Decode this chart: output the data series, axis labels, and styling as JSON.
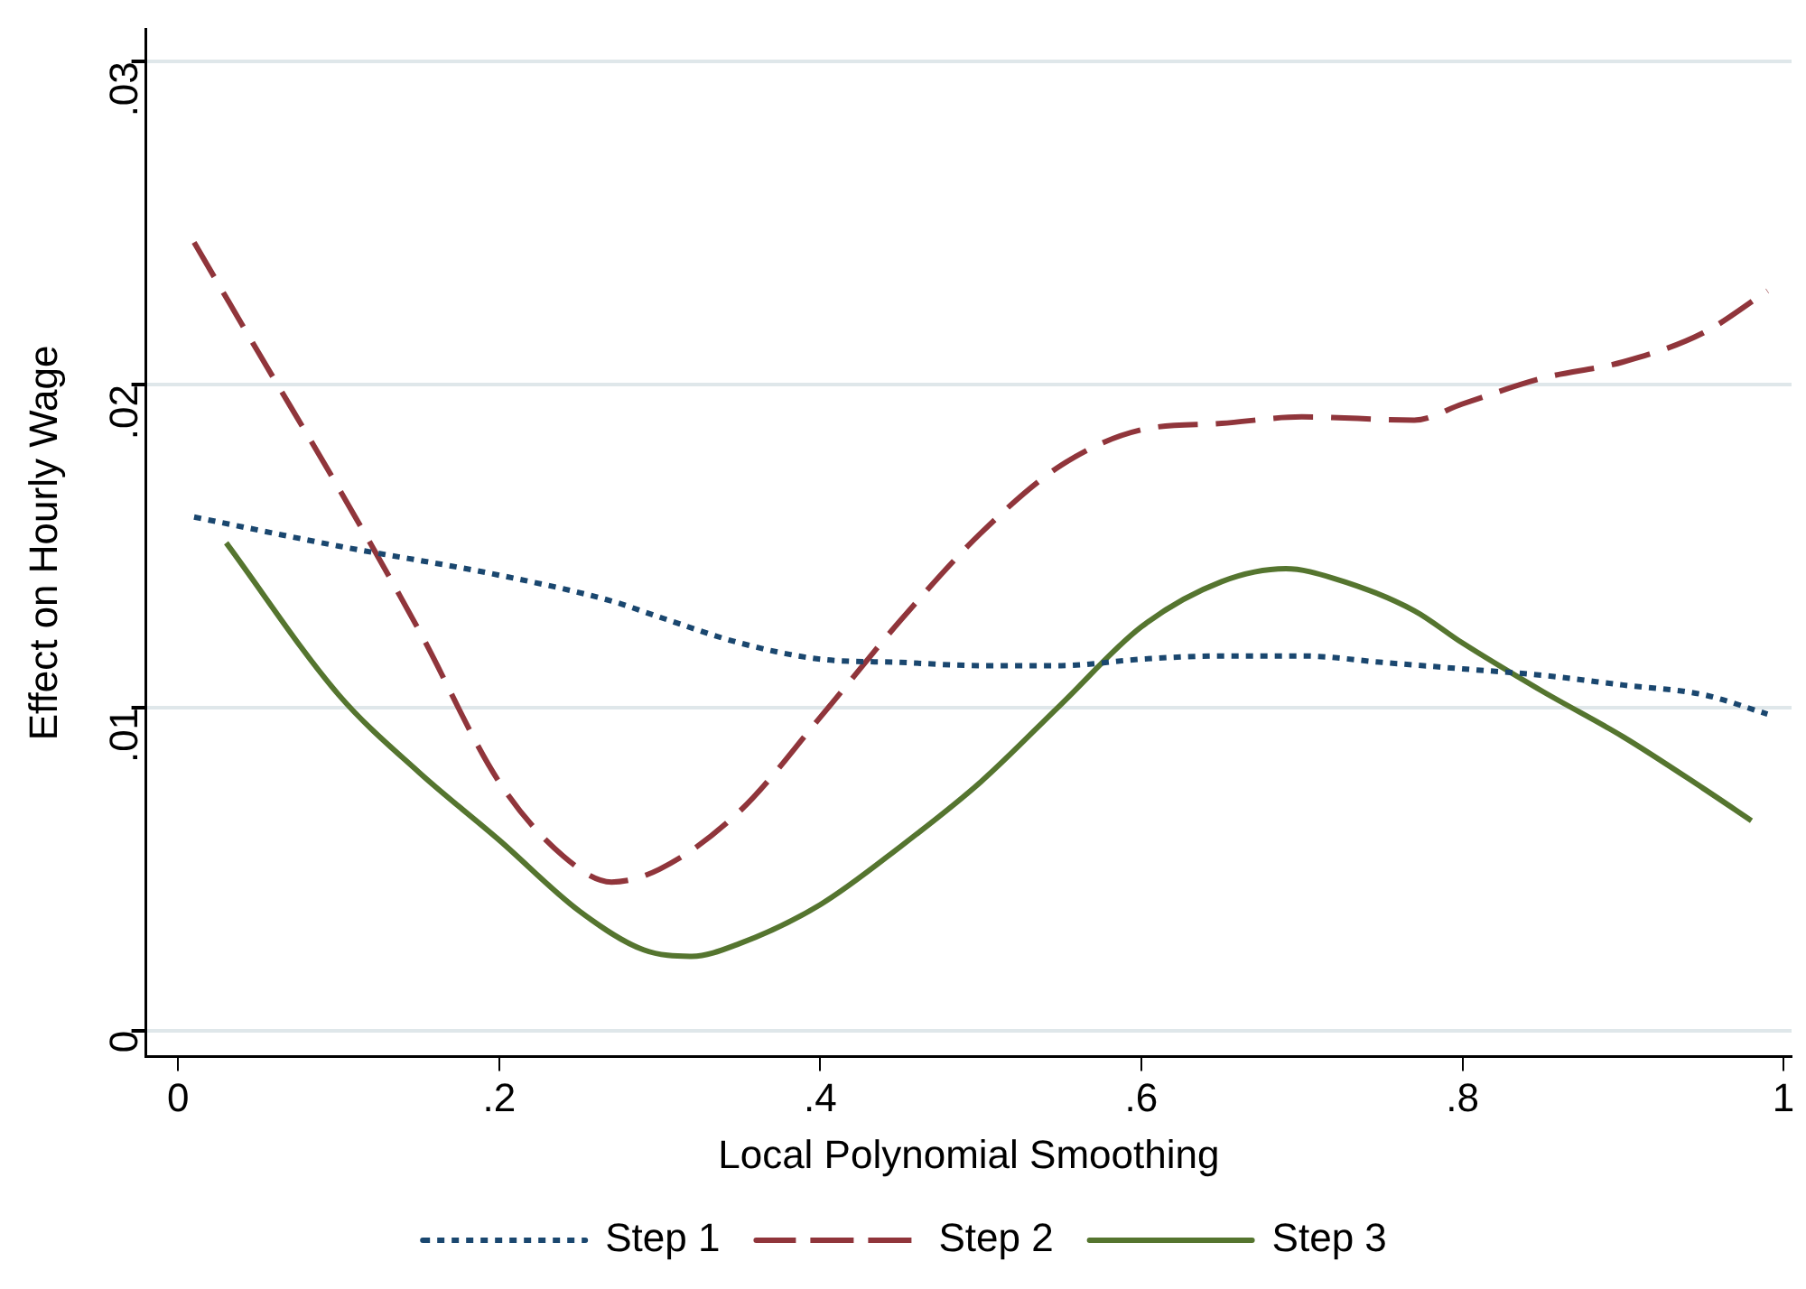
{
  "chart_data": {
    "type": "line",
    "xlabel": "Local Polynomial Smoothing",
    "ylabel": "Effect on Hourly Wage",
    "xlim": [
      -0.02,
      1.005
    ],
    "xticks": [
      {
        "value": 0,
        "label": "0"
      },
      {
        "value": 0.2,
        "label": ".2"
      },
      {
        "value": 0.4,
        "label": ".4"
      },
      {
        "value": 0.6,
        "label": ".6"
      },
      {
        "value": 0.8,
        "label": ".8"
      },
      {
        "value": 1,
        "label": "1"
      }
    ],
    "ylim": [
      -0.0008,
      0.031
    ],
    "yticks": [
      {
        "value": 0,
        "label": "0"
      },
      {
        "value": 0.01,
        "label": ".01"
      },
      {
        "value": 0.02,
        "label": ".02"
      },
      {
        "value": 0.03,
        "label": ".03"
      }
    ],
    "grid": "y",
    "legend": "bottom",
    "marker": "none",
    "series": [
      {
        "name": "Step 1",
        "color": "#1a476f",
        "line_style": "dotted",
        "x": [
          0.01,
          0.1,
          0.2,
          0.27,
          0.3,
          0.35,
          0.4,
          0.45,
          0.5,
          0.55,
          0.6,
          0.65,
          0.7,
          0.75,
          0.8,
          0.85,
          0.9,
          0.95,
          0.99
        ],
        "values": [
          0.0159,
          0.015,
          0.0141,
          0.0133,
          0.0128,
          0.012,
          0.0115,
          0.0114,
          0.0113,
          0.0113,
          0.0115,
          0.0116,
          0.0116,
          0.0114,
          0.0112,
          0.011,
          0.0107,
          0.0104,
          0.0098
        ]
      },
      {
        "name": "Step 2",
        "color": "#90353b",
        "line_style": "dashed",
        "x": [
          0.01,
          0.05,
          0.1,
          0.15,
          0.2,
          0.24,
          0.27,
          0.3,
          0.35,
          0.4,
          0.45,
          0.5,
          0.55,
          0.6,
          0.65,
          0.7,
          0.77,
          0.8,
          0.85,
          0.9,
          0.95,
          0.99
        ],
        "values": [
          0.0244,
          0.021,
          0.0168,
          0.0124,
          0.0077,
          0.0054,
          0.0046,
          0.005,
          0.0068,
          0.0097,
          0.0127,
          0.0154,
          0.0175,
          0.0186,
          0.0188,
          0.019,
          0.0189,
          0.0194,
          0.0202,
          0.0207,
          0.0216,
          0.0229
        ]
      },
      {
        "name": "Step 3",
        "color": "#55752f",
        "line_style": "solid",
        "x": [
          0.03,
          0.1,
          0.15,
          0.2,
          0.25,
          0.29,
          0.32,
          0.35,
          0.4,
          0.45,
          0.5,
          0.55,
          0.6,
          0.65,
          0.69,
          0.72,
          0.77,
          0.8,
          0.85,
          0.9,
          0.95,
          0.98
        ],
        "values": [
          0.0151,
          0.0104,
          0.008,
          0.0059,
          0.0037,
          0.0025,
          0.0023,
          0.0027,
          0.0039,
          0.0057,
          0.0077,
          0.0101,
          0.0125,
          0.0139,
          0.0143,
          0.014,
          0.013,
          0.012,
          0.0105,
          0.0091,
          0.0075,
          0.0065
        ]
      }
    ]
  }
}
